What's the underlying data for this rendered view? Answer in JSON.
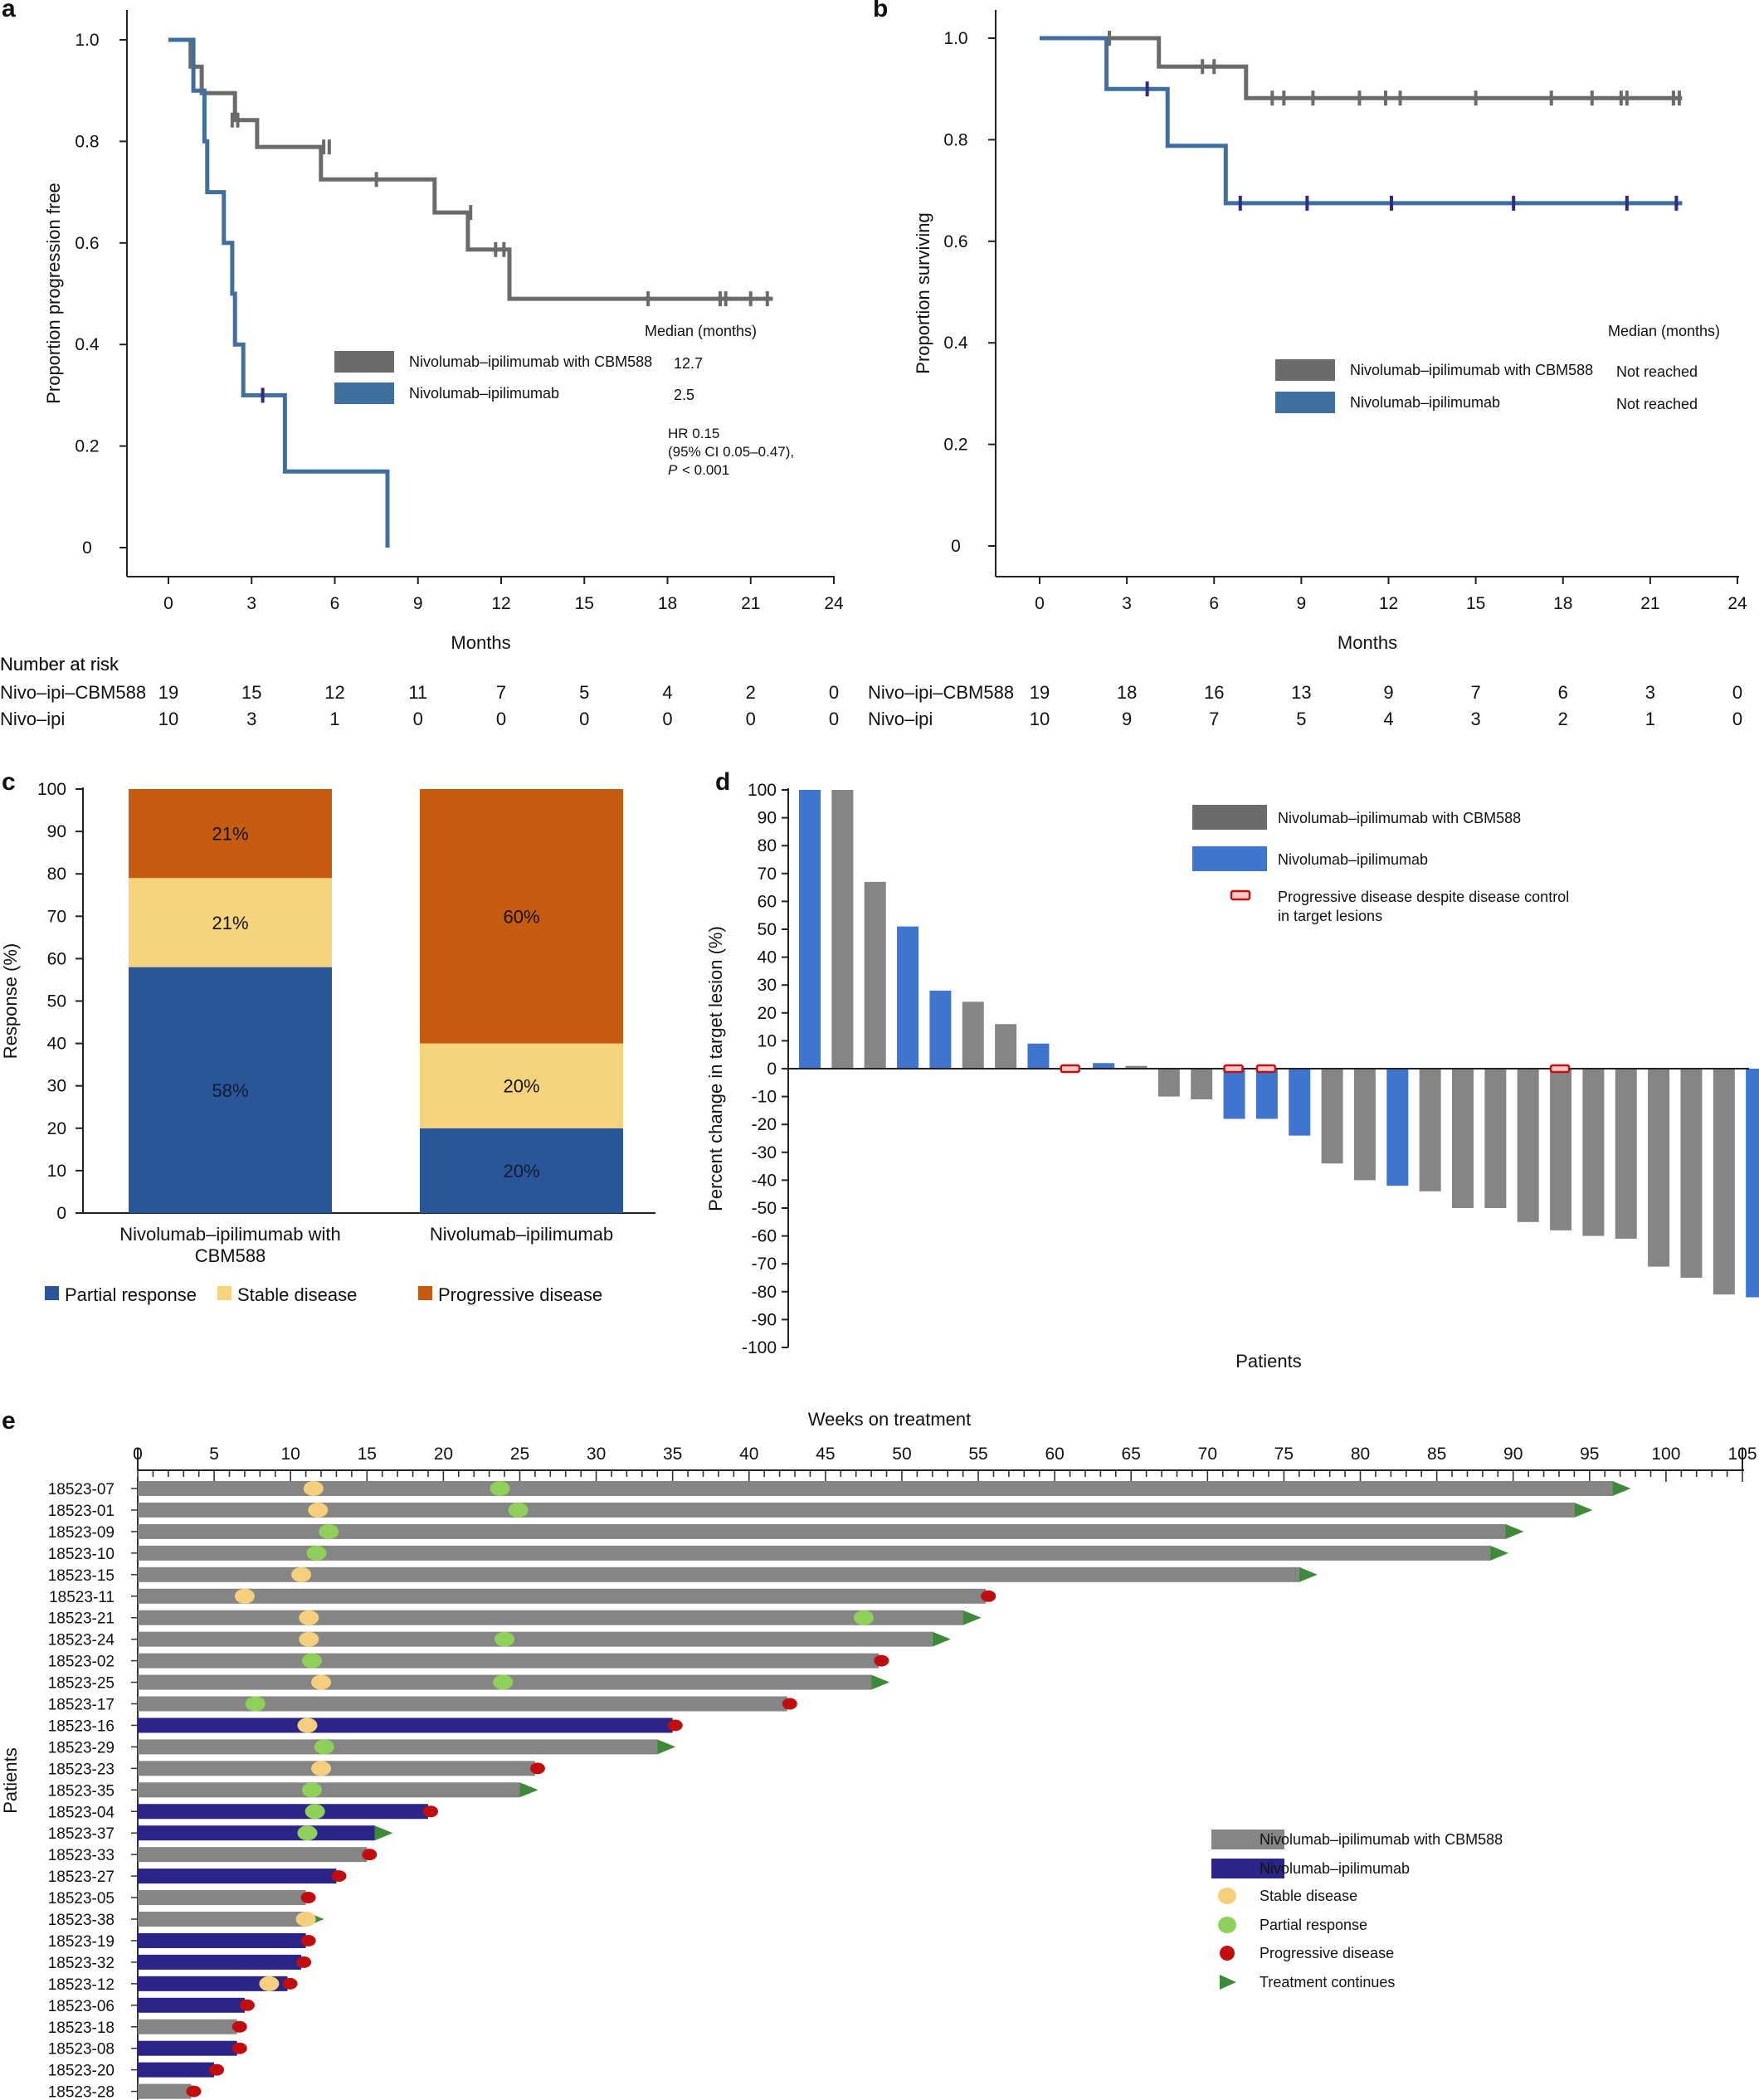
{
  "panels": {
    "a": "a",
    "b": "b",
    "c": "c",
    "d": "d",
    "e": "e"
  },
  "colors": {
    "cbm": "#6b6b6b",
    "ni": "#3e6f9d",
    "cbm_bar": "#858585",
    "ni_bar_d": "#3f74cf",
    "ni_bar_e": "#2a2586",
    "partial": "#2a5699",
    "stable": "#f6d47d",
    "progressive": "#c65b12",
    "pr_dot": "#8fd05a",
    "sd_dot": "#f6cf7c",
    "pd_dot": "#c10d0d",
    "tc_arrow": "#3f8a3a"
  },
  "chart_data": [
    {
      "id": "a",
      "type": "line",
      "subtype": "kaplan-meier",
      "xlabel": "Months",
      "ylabel": "Proportion progression free",
      "xlim": [
        0,
        24
      ],
      "ylim": [
        0,
        1.0
      ],
      "xticks": [
        0,
        3,
        6,
        9,
        12,
        15,
        18,
        21,
        24
      ],
      "yticks": [
        "0",
        "0.2",
        "0.4",
        "0.6",
        "0.8",
        "1.0"
      ],
      "median_header": "Median (months)",
      "series": [
        {
          "name": "Nivolumab–ipilimumab with CBM588",
          "median": "12.7",
          "steps": [
            [
              0,
              1.0
            ],
            [
              0.8,
              1.0
            ],
            [
              0.8,
              0.947
            ],
            [
              1.2,
              0.947
            ],
            [
              1.2,
              0.895
            ],
            [
              2.4,
              0.895
            ],
            [
              2.4,
              0.842
            ],
            [
              3.2,
              0.842
            ],
            [
              3.2,
              0.789
            ],
            [
              5.5,
              0.789
            ],
            [
              5.5,
              0.725
            ],
            [
              9.6,
              0.725
            ],
            [
              9.6,
              0.66
            ],
            [
              10.8,
              0.66
            ],
            [
              10.8,
              0.587
            ],
            [
              12.3,
              0.587
            ],
            [
              12.3,
              0.49
            ],
            [
              21.8,
              0.49
            ]
          ],
          "censor": [
            [
              2.3,
              0.842
            ],
            [
              2.5,
              0.842
            ],
            [
              5.6,
              0.789
            ],
            [
              5.8,
              0.789
            ],
            [
              7.5,
              0.725
            ],
            [
              10.9,
              0.66
            ],
            [
              11.8,
              0.587
            ],
            [
              12.1,
              0.587
            ],
            [
              17.3,
              0.49
            ],
            [
              19.9,
              0.49
            ],
            [
              20.1,
              0.49
            ],
            [
              21.0,
              0.49
            ],
            [
              21.6,
              0.49
            ]
          ]
        },
        {
          "name": "Nivolumab–ipilimumab",
          "median": "2.5",
          "steps": [
            [
              0,
              1.0
            ],
            [
              0.9,
              1.0
            ],
            [
              0.9,
              0.9
            ],
            [
              1.3,
              0.9
            ],
            [
              1.3,
              0.8
            ],
            [
              1.4,
              0.8
            ],
            [
              1.4,
              0.7
            ],
            [
              2.0,
              0.7
            ],
            [
              2.0,
              0.6
            ],
            [
              2.3,
              0.6
            ],
            [
              2.3,
              0.5
            ],
            [
              2.4,
              0.5
            ],
            [
              2.4,
              0.4
            ],
            [
              2.7,
              0.4
            ],
            [
              2.7,
              0.3
            ],
            [
              4.2,
              0.3
            ],
            [
              4.2,
              0.15
            ],
            [
              7.9,
              0.15
            ],
            [
              7.9,
              0.0
            ]
          ],
          "censor": [
            [
              3.4,
              0.3
            ]
          ]
        }
      ],
      "hr_lines": [
        "HR 0.15",
        "(95% CI 0.05–0.47),"
      ],
      "p_label": "P",
      "p_rest": " < 0.001",
      "risk_header": "Number at risk",
      "risk": [
        {
          "label": "Nivo–ipi–CBM588",
          "values": [
            "19",
            "15",
            "12",
            "11",
            "7",
            "5",
            "4",
            "2",
            "0"
          ]
        },
        {
          "label": "Nivo–ipi",
          "values": [
            "10",
            "3",
            "1",
            "0",
            "0",
            "0",
            "0",
            "0",
            "0"
          ]
        }
      ]
    },
    {
      "id": "b",
      "type": "line",
      "subtype": "kaplan-meier",
      "xlabel": "Months",
      "ylabel": "Proportion surviving",
      "xlim": [
        0,
        24
      ],
      "ylim": [
        0,
        1.0
      ],
      "xticks": [
        0,
        3,
        6,
        9,
        12,
        15,
        18,
        21,
        24
      ],
      "yticks": [
        "0",
        "0.2",
        "0.4",
        "0.6",
        "0.8",
        "1.0"
      ],
      "median_header": "Median (months)",
      "series": [
        {
          "name": "Nivolumab–ipilimumab with CBM588",
          "median": "Not reached",
          "steps": [
            [
              0,
              1.0
            ],
            [
              4.1,
              1.0
            ],
            [
              4.1,
              0.944
            ],
            [
              7.1,
              0.944
            ],
            [
              7.1,
              0.882
            ],
            [
              22.1,
              0.882
            ]
          ],
          "censor": [
            [
              2.4,
              1.0
            ],
            [
              5.6,
              0.944
            ],
            [
              6.0,
              0.944
            ],
            [
              8.0,
              0.882
            ],
            [
              8.4,
              0.882
            ],
            [
              9.4,
              0.882
            ],
            [
              11.0,
              0.882
            ],
            [
              11.9,
              0.882
            ],
            [
              12.4,
              0.882
            ],
            [
              15.0,
              0.882
            ],
            [
              17.6,
              0.882
            ],
            [
              19.0,
              0.882
            ],
            [
              20.0,
              0.882
            ],
            [
              20.2,
              0.882
            ],
            [
              21.8,
              0.882
            ],
            [
              22.0,
              0.882
            ]
          ]
        },
        {
          "name": "Nivolumab–ipilimumab",
          "median": "Not reached",
          "steps": [
            [
              0,
              1.0
            ],
            [
              2.3,
              1.0
            ],
            [
              2.3,
              0.9
            ],
            [
              4.4,
              0.9
            ],
            [
              4.4,
              0.788
            ],
            [
              6.4,
              0.788
            ],
            [
              6.4,
              0.675
            ],
            [
              22.1,
              0.675
            ]
          ],
          "censor": [
            [
              3.7,
              0.9
            ],
            [
              6.9,
              0.675
            ],
            [
              9.2,
              0.675
            ],
            [
              12.1,
              0.675
            ],
            [
              16.3,
              0.675
            ],
            [
              20.2,
              0.675
            ],
            [
              21.9,
              0.675
            ]
          ]
        }
      ],
      "risk_header": "Number at risk",
      "risk": [
        {
          "label": "Nivo–ipi–CBM588",
          "values": [
            "19",
            "18",
            "16",
            "13",
            "9",
            "7",
            "6",
            "3",
            "0"
          ]
        },
        {
          "label": "Nivo–ipi",
          "values": [
            "10",
            "9",
            "7",
            "5",
            "4",
            "3",
            "2",
            "1",
            "0"
          ]
        }
      ]
    },
    {
      "id": "c",
      "type": "bar",
      "subtype": "stacked",
      "ylabel": "Response (%)",
      "ylim": [
        0,
        100
      ],
      "yticks": [
        "0",
        "10",
        "20",
        "30",
        "40",
        "50",
        "60",
        "70",
        "80",
        "90",
        "100"
      ],
      "categories": [
        {
          "lines": [
            "Nivolumab–ipilimumab with",
            "CBM588"
          ]
        },
        {
          "lines": [
            "Nivolumab–ipilimumab"
          ]
        }
      ],
      "series": [
        {
          "name": "Partial response",
          "values": [
            58,
            20
          ],
          "labels": [
            "58%",
            "20%"
          ]
        },
        {
          "name": "Stable disease",
          "values": [
            21,
            20
          ],
          "labels": [
            "21%",
            "20%"
          ]
        },
        {
          "name": "Progressive disease",
          "values": [
            21,
            60
          ],
          "labels": [
            "21%",
            "60%"
          ]
        }
      ]
    },
    {
      "id": "d",
      "type": "bar",
      "subtype": "waterfall",
      "xlabel": "Patients",
      "ylabel": "Percent change in target lesion (%)",
      "ylim": [
        -100,
        100
      ],
      "yticks": [
        "-100",
        "-90",
        "-80",
        "-70",
        "-60",
        "-50",
        "-40",
        "-30",
        "-20",
        "-10",
        "0",
        "10",
        "20",
        "30",
        "40",
        "50",
        "60",
        "70",
        "80",
        "90",
        "100"
      ],
      "values": [
        100,
        100,
        67,
        51,
        28,
        24,
        16,
        9,
        0,
        2,
        1,
        -10,
        -11,
        -18,
        -18,
        -24,
        -34,
        -40,
        -42,
        -44,
        -50,
        -50,
        -55,
        -58,
        -60,
        -61,
        -71,
        -75,
        -81,
        -82
      ],
      "arms": [
        "ni",
        "cbm",
        "cbm",
        "ni",
        "ni",
        "cbm",
        "cbm",
        "ni",
        "cbm",
        "ni",
        "cbm",
        "cbm",
        "cbm",
        "ni",
        "ni",
        "ni",
        "cbm",
        "cbm",
        "ni",
        "cbm",
        "cbm",
        "cbm",
        "cbm",
        "cbm",
        "cbm",
        "cbm",
        "cbm",
        "cbm",
        "cbm",
        "ni"
      ],
      "pd_despite_control": [
        8,
        13,
        14,
        23
      ],
      "legend": [
        "Nivolumab–ipilimumab with CBM588",
        "Nivolumab–ipilimumab"
      ],
      "pd_legend_lines": [
        "Progressive disease despite disease control",
        "in target lesions"
      ]
    },
    {
      "id": "e",
      "type": "swimmer",
      "title": "Weeks on treatment",
      "ylabel": "Patients",
      "xlim": [
        0,
        105
      ],
      "xticks": [
        "0",
        "5",
        "10",
        "15",
        "20",
        "25",
        "30",
        "35",
        "40",
        "45",
        "50",
        "55",
        "60",
        "65",
        "70",
        "75",
        "80",
        "85",
        "90",
        "95",
        "100",
        "105"
      ],
      "patients": [
        {
          "id": "18523-07",
          "arm": "cbm",
          "weeks": 96.5,
          "end": "tc",
          "sd": [
            11.5
          ],
          "pr": [
            23.7
          ]
        },
        {
          "id": "18523-01",
          "arm": "cbm",
          "weeks": 94,
          "end": "tc",
          "sd": [
            11.8
          ],
          "pr": [
            24.9
          ]
        },
        {
          "id": "18523-09",
          "arm": "cbm",
          "weeks": 89.5,
          "end": "tc",
          "sd": [],
          "pr": [
            12.5
          ]
        },
        {
          "id": "18523-10",
          "arm": "cbm",
          "weeks": 88.5,
          "end": "tc",
          "sd": [],
          "pr": [
            11.7
          ]
        },
        {
          "id": "18523-15",
          "arm": "cbm",
          "weeks": 76,
          "end": "tc",
          "sd": [
            10.7
          ],
          "pr": []
        },
        {
          "id": "18523-11",
          "arm": "cbm",
          "weeks": 55.5,
          "end": "pd",
          "sd": [
            7
          ],
          "pr": []
        },
        {
          "id": "18523-21",
          "arm": "cbm",
          "weeks": 54,
          "end": "tc",
          "sd": [
            11.2
          ],
          "pr": [
            47.5
          ]
        },
        {
          "id": "18523-24",
          "arm": "cbm",
          "weeks": 52,
          "end": "tc",
          "sd": [
            11.2
          ],
          "pr": [
            24
          ]
        },
        {
          "id": "18523-02",
          "arm": "cbm",
          "weeks": 48.5,
          "end": "pd",
          "sd": [],
          "pr": [
            11.4
          ]
        },
        {
          "id": "18523-25",
          "arm": "cbm",
          "weeks": 48,
          "end": "tc",
          "sd": [
            12
          ],
          "pr": [
            23.9
          ]
        },
        {
          "id": "18523-17",
          "arm": "cbm",
          "weeks": 42.5,
          "end": "pd",
          "sd": [],
          "pr": [
            7.7
          ]
        },
        {
          "id": "18523-16",
          "arm": "ni",
          "weeks": 35,
          "end": "pd",
          "sd": [
            11.1
          ],
          "pr": []
        },
        {
          "id": "18523-29",
          "arm": "cbm",
          "weeks": 34,
          "end": "tc",
          "sd": [],
          "pr": [
            12.2
          ]
        },
        {
          "id": "18523-23",
          "arm": "cbm",
          "weeks": 26,
          "end": "pd",
          "sd": [
            12
          ],
          "pr": []
        },
        {
          "id": "18523-35",
          "arm": "cbm",
          "weeks": 25,
          "end": "tc",
          "sd": [],
          "pr": [
            11.4
          ]
        },
        {
          "id": "18523-04",
          "arm": "ni",
          "weeks": 19,
          "end": "pd",
          "sd": [],
          "pr": [
            11.6
          ]
        },
        {
          "id": "18523-37",
          "arm": "ni",
          "weeks": 15.5,
          "end": "tc",
          "sd": [],
          "pr": [
            11.1
          ]
        },
        {
          "id": "18523-33",
          "arm": "cbm",
          "weeks": 15,
          "end": "pd",
          "sd": [],
          "pr": []
        },
        {
          "id": "18523-27",
          "arm": "ni",
          "weeks": 13,
          "end": "pd",
          "sd": [],
          "pr": []
        },
        {
          "id": "18523-05",
          "arm": "cbm",
          "weeks": 11,
          "end": "pd",
          "sd": [],
          "pr": []
        },
        {
          "id": "18523-38",
          "arm": "cbm",
          "weeks": 11,
          "end": "tc",
          "sd": [
            11
          ],
          "pr": []
        },
        {
          "id": "18523-19",
          "arm": "ni",
          "weeks": 11,
          "end": "pd",
          "sd": [],
          "pr": []
        },
        {
          "id": "18523-32",
          "arm": "ni",
          "weeks": 10.7,
          "end": "pd",
          "sd": [],
          "pr": []
        },
        {
          "id": "18523-12",
          "arm": "ni",
          "weeks": 9.8,
          "end": "pd",
          "sd": [
            8.6
          ],
          "pr": []
        },
        {
          "id": "18523-06",
          "arm": "ni",
          "weeks": 7,
          "end": "pd",
          "sd": [],
          "pr": []
        },
        {
          "id": "18523-18",
          "arm": "cbm",
          "weeks": 6.5,
          "end": "pd",
          "sd": [],
          "pr": []
        },
        {
          "id": "18523-08",
          "arm": "ni",
          "weeks": 6.5,
          "end": "pd",
          "sd": [],
          "pr": []
        },
        {
          "id": "18523-20",
          "arm": "ni",
          "weeks": 5,
          "end": "pd",
          "sd": [],
          "pr": []
        },
        {
          "id": "18523-28",
          "arm": "cbm",
          "weeks": 3.5,
          "end": "pd",
          "sd": [],
          "pr": []
        }
      ],
      "legend": {
        "cbm": "Nivolumab–ipilimumab with CBM588",
        "ni": "Nivolumab–ipilimumab",
        "sd": "Stable disease",
        "pr": "Partial response",
        "pd": "Progressive disease",
        "tc": "Treatment continues"
      }
    }
  ]
}
